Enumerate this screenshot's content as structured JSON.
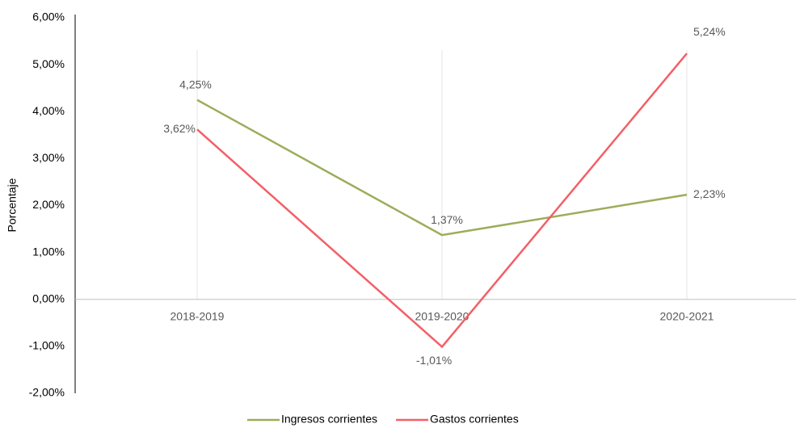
{
  "chart_data": {
    "type": "line",
    "y_label": "Porcentaje",
    "categories": [
      "2018-2019",
      "2019-2020",
      "2020-2021"
    ],
    "series": [
      {
        "name": "Ingresos corrientes",
        "color": "#9bad5a",
        "values": [
          4.25,
          1.37,
          2.23
        ],
        "value_labels": [
          "4,25%",
          "1,37%",
          "2,23%"
        ]
      },
      {
        "name": "Gastos corrientes",
        "color": "#f45f68",
        "values": [
          3.62,
          -1.01,
          5.24
        ],
        "value_labels": [
          "3,62%",
          "-1,01%",
          "5,24%"
        ]
      }
    ],
    "ylim": [
      -2,
      6
    ],
    "yticks": [
      {
        "value": -2,
        "label": "-2,00%"
      },
      {
        "value": -1,
        "label": "-1,00%"
      },
      {
        "value": 0,
        "label": "0,00%"
      },
      {
        "value": 1,
        "label": "1,00%"
      },
      {
        "value": 2,
        "label": "2,00%"
      },
      {
        "value": 3,
        "label": "3,00%"
      },
      {
        "value": 4,
        "label": "4,00%"
      },
      {
        "value": 5,
        "label": "5,00%"
      },
      {
        "value": 6,
        "label": "6,00%"
      }
    ],
    "grid": true,
    "legend": "bottom"
  }
}
